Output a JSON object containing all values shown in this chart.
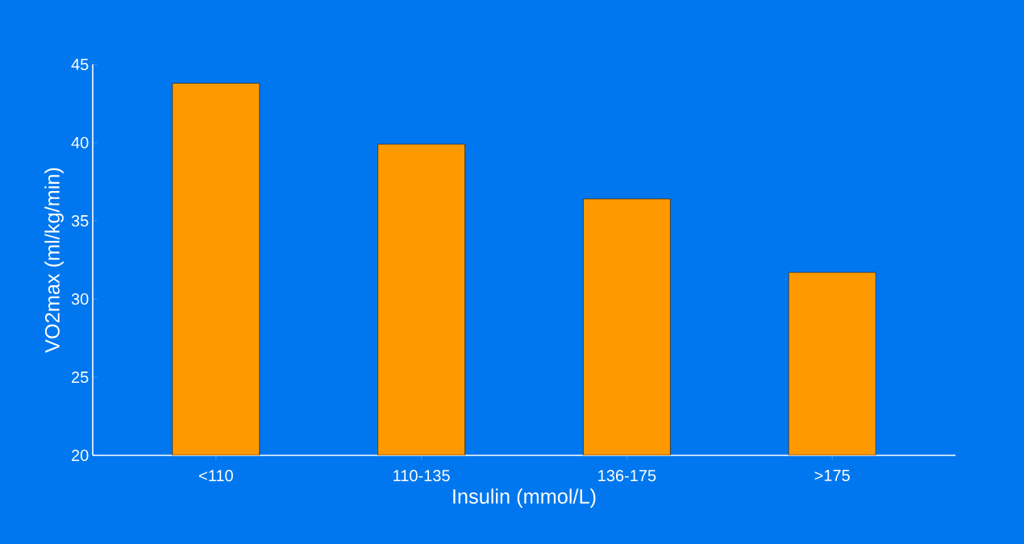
{
  "chart_data": {
    "type": "bar",
    "xlabel": "Insulin (mmol/L)",
    "ylabel": "VO2max (ml/kg/min)",
    "categories": [
      "<110",
      "110-135",
      "136-175",
      ">175"
    ],
    "values": [
      43.8,
      39.9,
      36.4,
      31.7
    ],
    "color": "#ff9900",
    "ylim": [
      20,
      45
    ],
    "yticks": [
      20,
      25,
      30,
      35,
      40,
      45
    ],
    "grid": false
  }
}
